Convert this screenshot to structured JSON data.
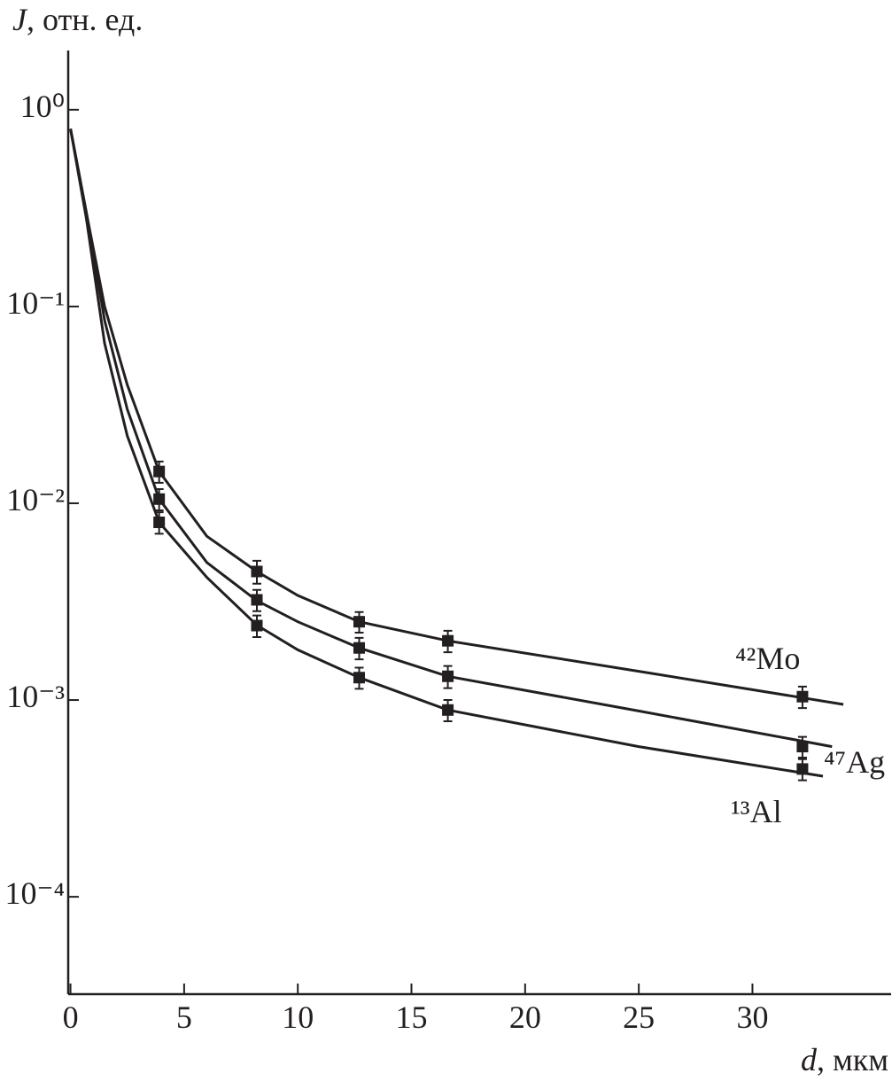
{
  "chart_data": {
    "type": "scatter",
    "y_label": {
      "symbol": "J",
      "unit": ", отн. ед."
    },
    "x_label": {
      "symbol": "d",
      "unit": ", мкм"
    },
    "log_y": true,
    "color": "#231f20",
    "xlim": [
      -0.1,
      36.1
    ],
    "ylim": [
      3.2e-05,
      2
    ],
    "xticks": [
      0,
      5,
      10,
      15,
      20,
      25,
      30
    ],
    "yticks": [
      {
        "value": 1,
        "label": "10⁰"
      },
      {
        "value": 0.1,
        "label": "10⁻¹"
      },
      {
        "value": 0.01,
        "label": "10⁻²"
      },
      {
        "value": 0.001,
        "label": "10⁻³"
      },
      {
        "value": 0.0001,
        "label": "10⁻⁴"
      }
    ],
    "series": [
      {
        "name": "⁴²Mo",
        "x": [
          3.9,
          8.2,
          12.7,
          16.6,
          32.2
        ],
        "values": [
          0.0145,
          0.0045,
          0.0025,
          0.002,
          0.00104
        ],
        "errors": [
          0.0018,
          0.0006,
          0.0003,
          0.00025,
          0.00013
        ],
        "fit_x": [
          0,
          0.7,
          1.5,
          2.5,
          3.9,
          6,
          8.2,
          10,
          12.7,
          16.6,
          25,
          34
        ],
        "fit_values": [
          0.8,
          0.3,
          0.1,
          0.04,
          0.0145,
          0.0068,
          0.0045,
          0.0034,
          0.0025,
          0.002,
          0.0014,
          0.00095
        ]
      },
      {
        "name": "⁴⁷Ag",
        "x": [
          3.9,
          8.2,
          12.7,
          16.6,
          32.2
        ],
        "values": [
          0.0105,
          0.00323,
          0.00184,
          0.00132,
          0.00058
        ],
        "errors": [
          0.0013,
          0.0004,
          0.00023,
          0.00017,
          7e-05
        ],
        "fit_x": [
          0,
          0.7,
          1.5,
          2.5,
          3.9,
          6,
          8.2,
          10,
          12.7,
          16.6,
          25,
          33.5
        ],
        "fit_values": [
          0.8,
          0.3,
          0.085,
          0.03,
          0.0105,
          0.005,
          0.0032,
          0.0025,
          0.00184,
          0.00132,
          0.00088,
          0.00058
        ]
      },
      {
        "name": "¹³Al",
        "x": [
          3.9,
          8.2,
          12.7,
          16.6,
          32.2
        ],
        "values": [
          0.008,
          0.00239,
          0.0013,
          0.00089,
          0.000446
        ],
        "errors": [
          0.001,
          0.0003,
          0.00016,
          0.00011,
          5.5e-05
        ],
        "fit_x": [
          0,
          0.7,
          1.5,
          2.5,
          3.9,
          6,
          8.2,
          10,
          12.7,
          16.6,
          25,
          33.1
        ],
        "fit_values": [
          0.8,
          0.28,
          0.065,
          0.022,
          0.008,
          0.0042,
          0.0024,
          0.0018,
          0.0013,
          0.00089,
          0.00058,
          0.00041
        ]
      }
    ]
  }
}
